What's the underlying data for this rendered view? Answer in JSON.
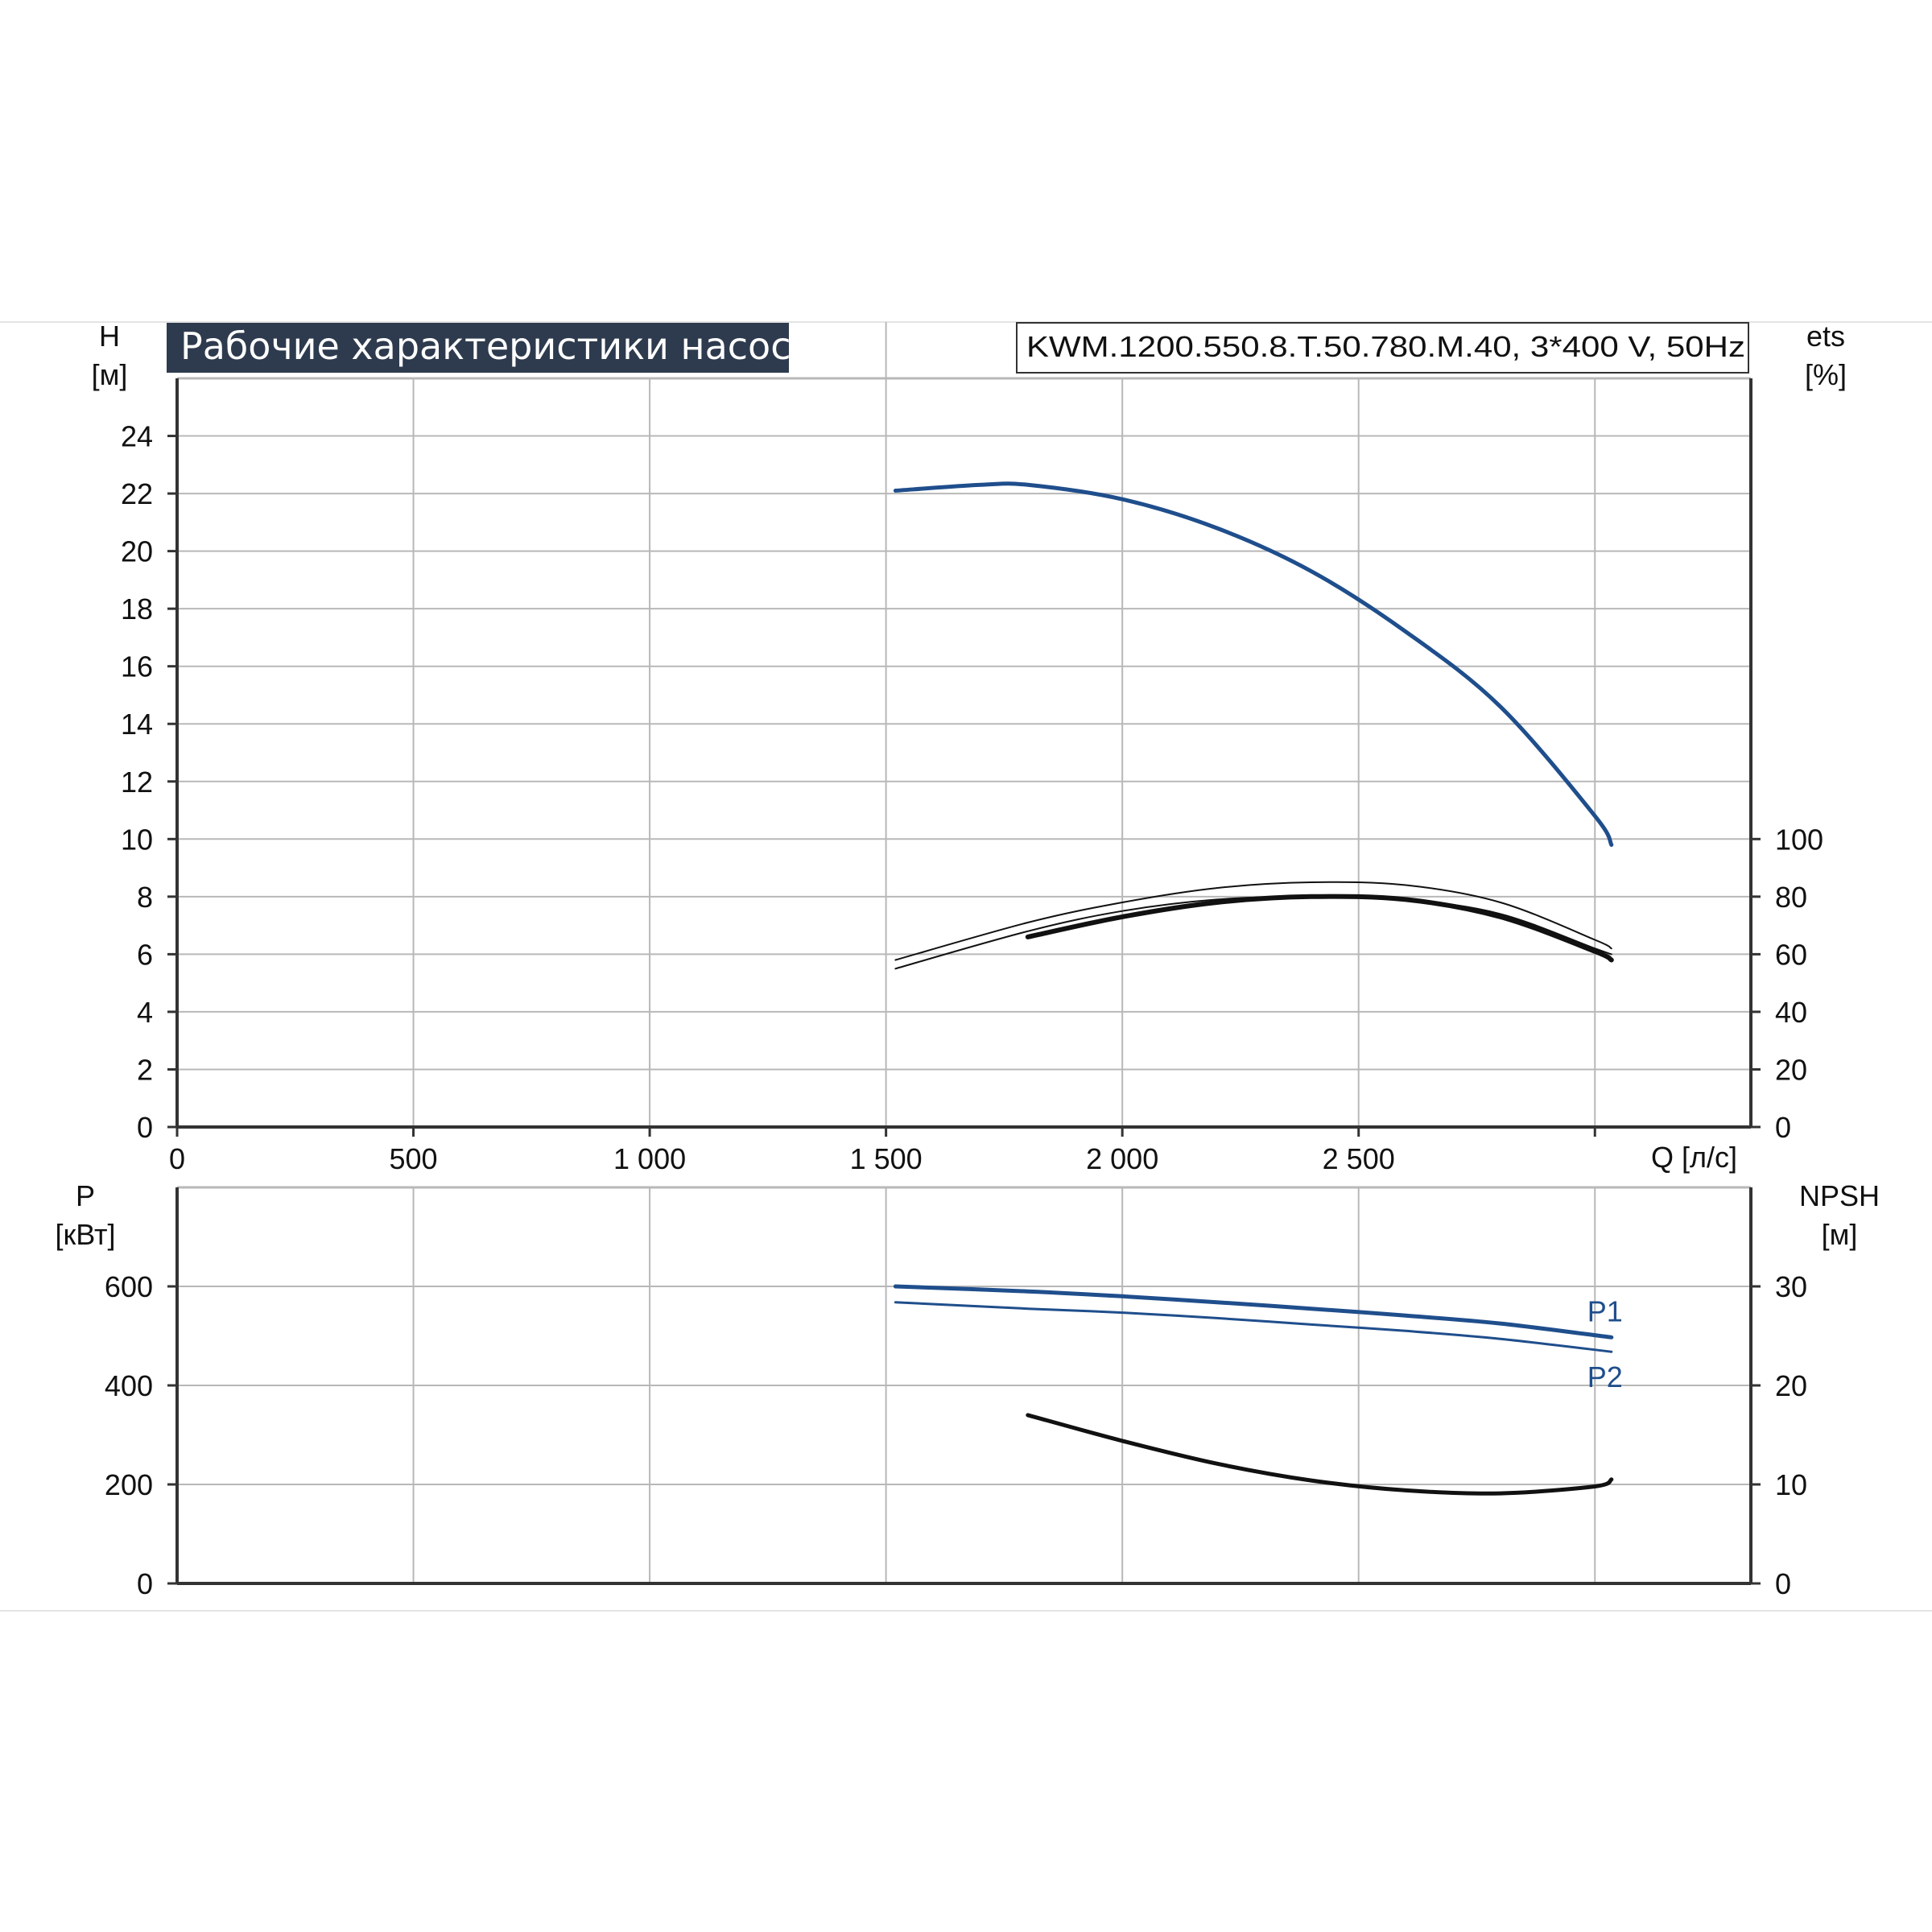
{
  "title": "Рабочие характеристики насоса",
  "model": "KWM.1200.550.8.T.50.780.M.40, 3*400 V, 50Hz",
  "colors": {
    "title_bg": "#2e3b4e",
    "blue": "#1f4e8c",
    "black": "#111111",
    "grid": "#b8b8b8"
  },
  "chart_data": [
    {
      "type": "line",
      "xlabel": "Q [л/с]",
      "ylabel": "H [м]",
      "y2label": "ets [%]",
      "x_ticks": [
        0,
        500,
        1000,
        1500,
        2000,
        2500
      ],
      "x_tick_labels": [
        "0",
        "500",
        "1 000",
        "1 500",
        "2 000",
        "2 500"
      ],
      "xlim": [
        0,
        3330
      ],
      "ylim": [
        0,
        26
      ],
      "y_ticks": [
        0,
        2,
        4,
        6,
        8,
        10,
        12,
        14,
        16,
        18,
        20,
        22,
        24
      ],
      "y_tick_labels": [
        "0",
        "2",
        "4",
        "6",
        "8",
        "10",
        "12",
        "14",
        "16",
        "18",
        "20",
        "22",
        "24"
      ],
      "y2lim": [
        0,
        260
      ],
      "y2_ticks": [
        0,
        20,
        40,
        60,
        80,
        100
      ],
      "y2_tick_labels": [
        "0",
        "20",
        "40",
        "60",
        "80",
        "100"
      ],
      "grid": true,
      "series": [
        {
          "name": "",
          "axis": "left",
          "color": "blue",
          "width": 5,
          "x": [
            1520,
            1700,
            1800,
            2000,
            2200,
            2400,
            2600,
            2800,
            3000,
            3035
          ],
          "y": [
            22.1,
            22.3,
            22.3,
            21.8,
            20.8,
            19.3,
            17.2,
            14.6,
            10.8,
            9.8
          ]
        },
        {
          "name": "",
          "axis": "right",
          "color": "black",
          "width": 2,
          "x": [
            1520,
            1800,
            2000,
            2200,
            2400,
            2600,
            2800,
            3000,
            3035
          ],
          "y": [
            58,
            71,
            78,
            83,
            85,
            84,
            78,
            65,
            62
          ]
        },
        {
          "name": "",
          "axis": "right",
          "color": "black",
          "width": 2,
          "x": [
            1520,
            1800,
            2000,
            2200,
            2400,
            2600,
            2800,
            3000,
            3035
          ],
          "y": [
            55,
            68,
            75,
            79,
            80,
            79,
            74,
            62,
            60
          ]
        },
        {
          "name": "",
          "axis": "right",
          "color": "black",
          "width": 6,
          "x": [
            1800,
            2000,
            2200,
            2400,
            2600,
            2800,
            3000,
            3035
          ],
          "y": [
            66,
            73,
            78,
            80,
            79,
            73,
            61,
            58
          ]
        }
      ]
    },
    {
      "type": "line",
      "xlabel": "Q [л/с]",
      "ylabel": "P [кВт]",
      "y2label": "NPSH [м]",
      "xlim": [
        0,
        3330
      ],
      "ylim": [
        0,
        800
      ],
      "y_ticks": [
        0,
        200,
        400,
        600
      ],
      "y_tick_labels": [
        "0",
        "200",
        "400",
        "600"
      ],
      "y2lim": [
        0,
        40
      ],
      "y2_ticks": [
        0,
        10,
        20,
        30
      ],
      "y2_tick_labels": [
        "0",
        "10",
        "20",
        "30"
      ],
      "grid": true,
      "series": [
        {
          "name": "P1",
          "axis": "left",
          "color": "blue",
          "width": 5,
          "x": [
            1520,
            1800,
            2000,
            2200,
            2400,
            2600,
            2800,
            3035
          ],
          "y": [
            600,
            590,
            580,
            568,
            555,
            541,
            525,
            497
          ]
        },
        {
          "name": "P2",
          "axis": "left",
          "color": "blue",
          "width": 3,
          "x": [
            1520,
            1800,
            2000,
            2200,
            2400,
            2600,
            2800,
            3035
          ],
          "y": [
            568,
            555,
            547,
            536,
            523,
            510,
            494,
            468
          ]
        },
        {
          "name": "",
          "axis": "right",
          "color": "black",
          "width": 5,
          "x": [
            1800,
            2000,
            2200,
            2400,
            2600,
            2800,
            3000,
            3035
          ],
          "y": [
            17,
            14.4,
            12.1,
            10.4,
            9.4,
            9.1,
            9.8,
            10.5
          ]
        }
      ]
    }
  ]
}
